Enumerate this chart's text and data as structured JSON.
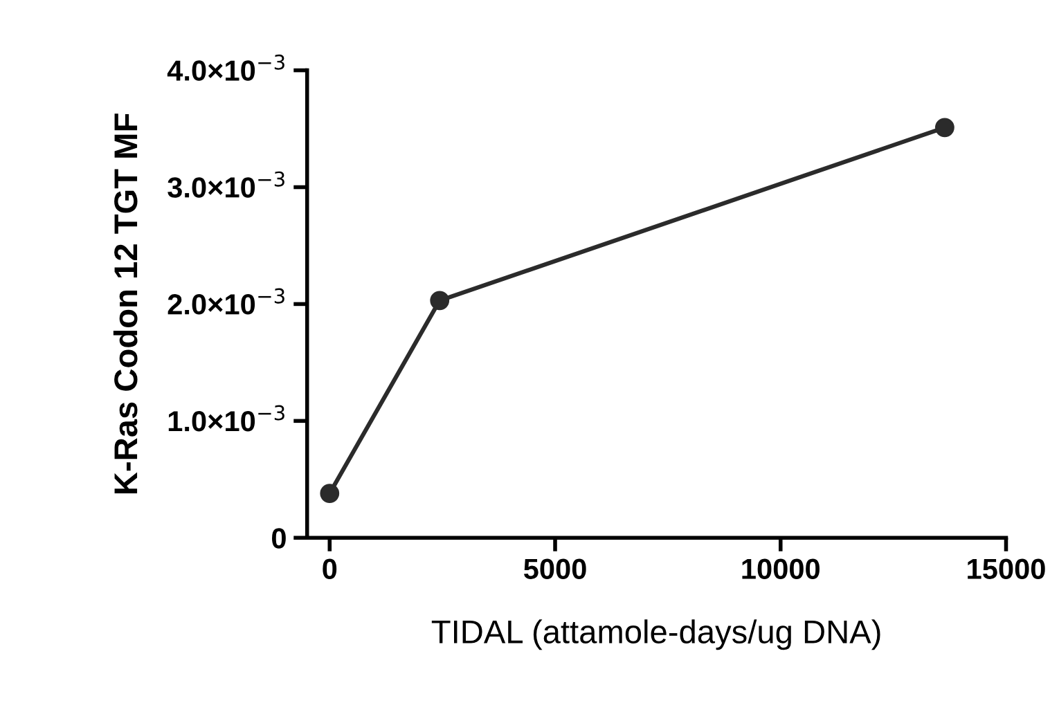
{
  "chart_data": {
    "type": "line",
    "xlabel": "TIDAL (attamole-days/ug DNA)",
    "ylabel": "K-Ras Codon 12 TGT MF",
    "x": [
      0,
      2440,
      13640
    ],
    "series": [
      {
        "color": "#2b2b2b",
        "values": [
          0.00038,
          0.00203,
          0.00351
        ]
      }
    ],
    "marker": "circle",
    "line_style": "solid",
    "grid": false,
    "xlim": [
      -500,
      15000
    ],
    "xticks": [
      0,
      5000,
      10000,
      15000
    ],
    "ylim": [
      0,
      0.004
    ],
    "yticks": [
      0,
      {
        "value": 0.001,
        "label": "1.0×10$^{−3}$"
      },
      {
        "value": 0.002,
        "label": "2.0×10$^{−3}$"
      },
      {
        "value": 0.003,
        "label": "3.0×10$^{−3}$"
      },
      {
        "value": 0.004,
        "label": "4.0×10$^{−3}$"
      }
    ]
  }
}
